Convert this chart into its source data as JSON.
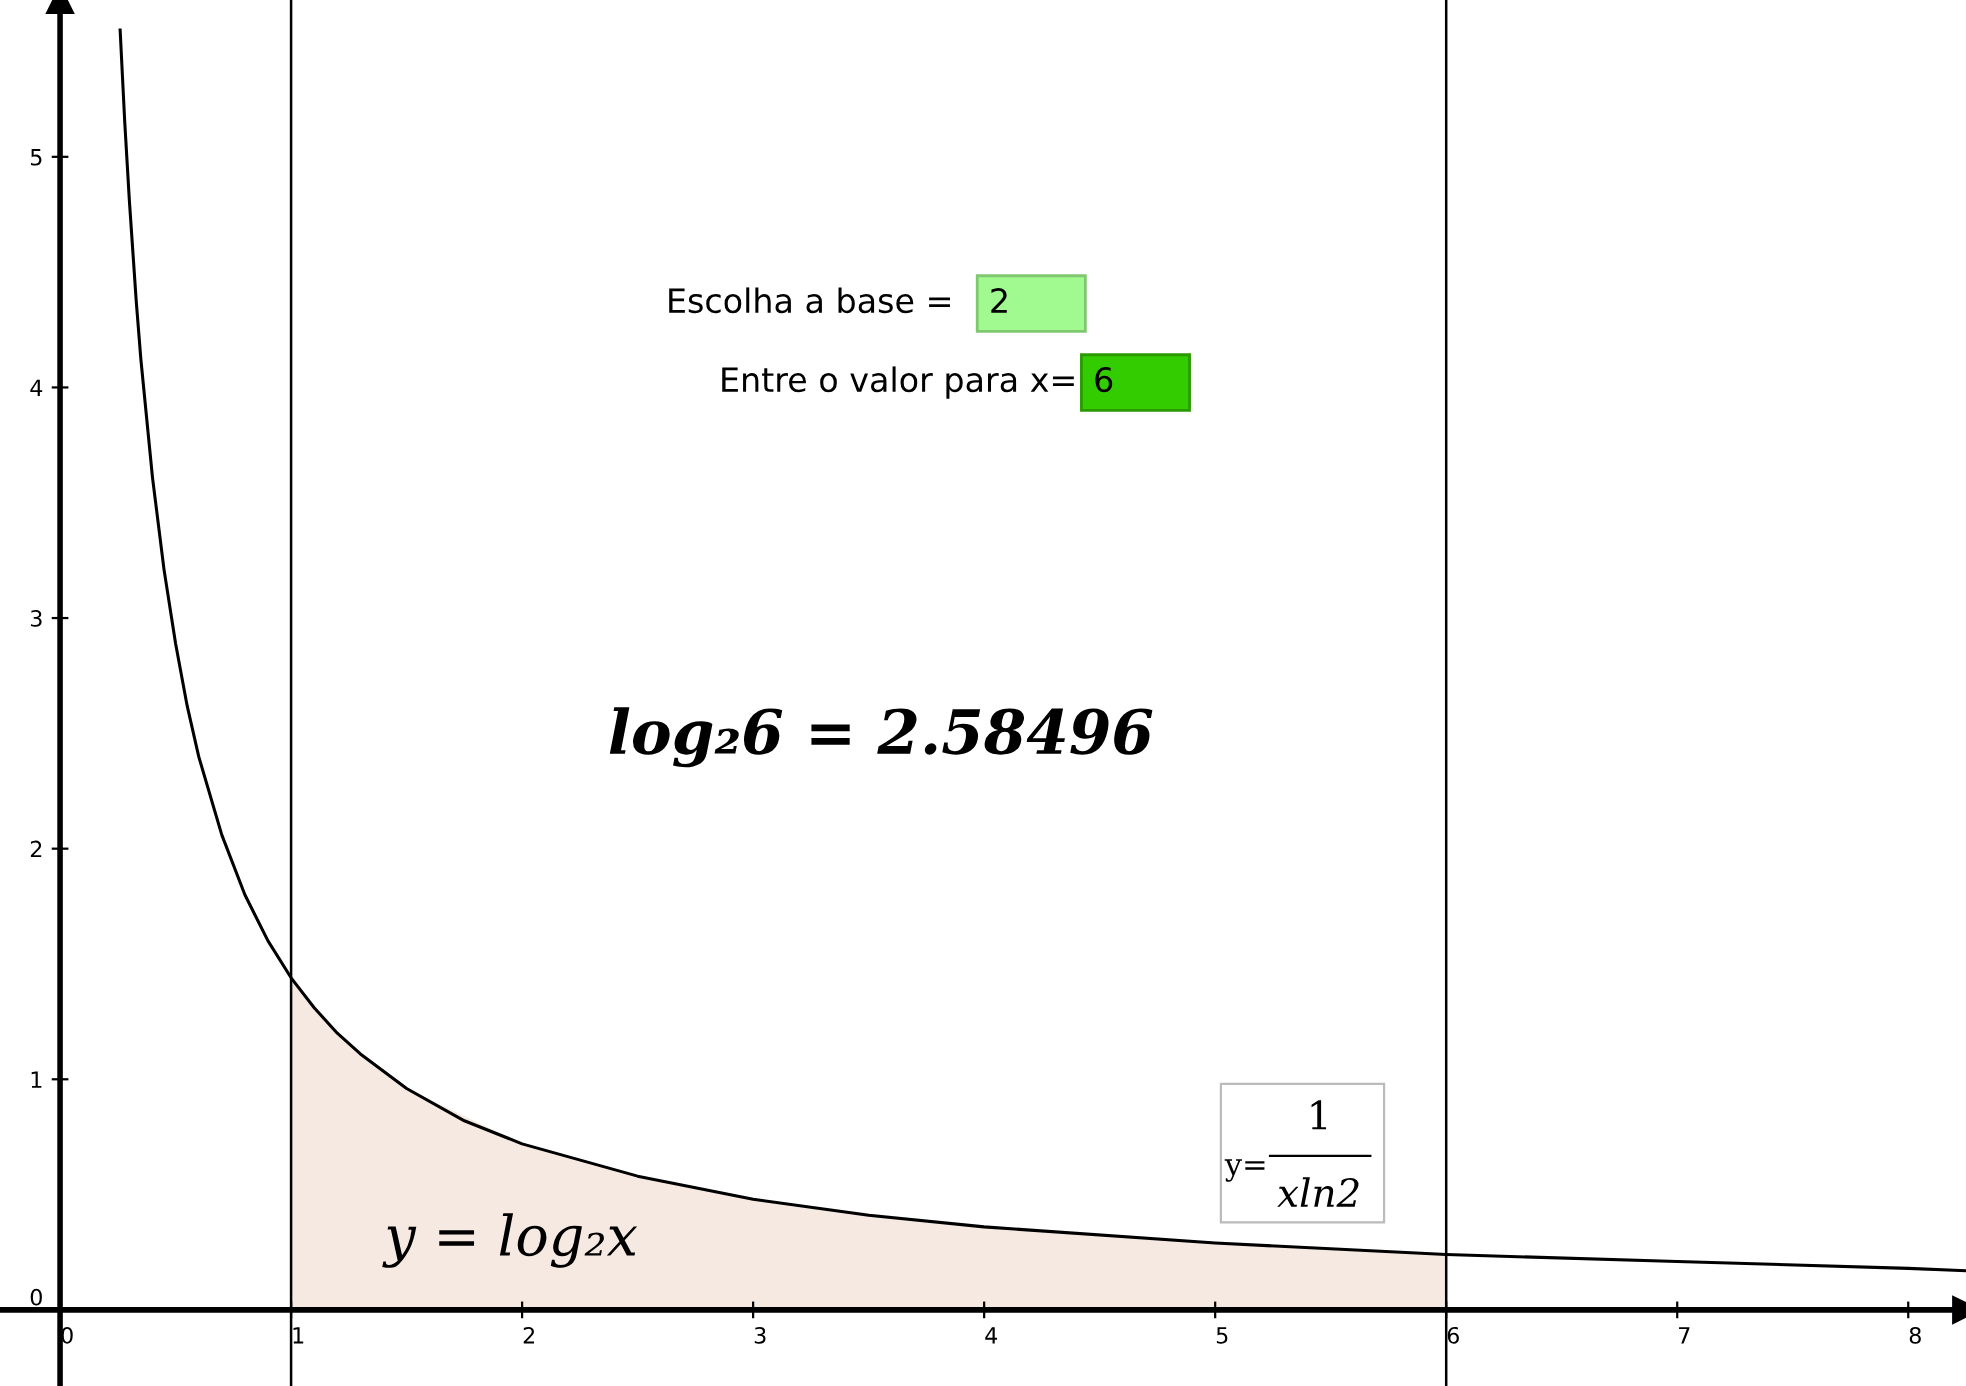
{
  "chart_data": {
    "type": "line",
    "series": [
      {
        "type": "area",
        "color": "#f5e9e2",
        "x": [
          1,
          1.2,
          1.5,
          2,
          2.5,
          3,
          4,
          5,
          6
        ],
        "values": [
          1.44,
          1.2,
          0.96,
          0.72,
          0.58,
          0.48,
          0.36,
          0.29,
          0.24
        ]
      },
      {
        "color": "#000000",
        "x": [
          0.26,
          0.28,
          0.3,
          0.33,
          0.35,
          0.4,
          0.45,
          0.5,
          0.55,
          0.6,
          0.7,
          0.8,
          0.9,
          1,
          1.1,
          1.2,
          1.3,
          1.5,
          1.75,
          2,
          2.5,
          3,
          3.5,
          4,
          5,
          6,
          7,
          8,
          8.25
        ],
        "values": [
          5.55,
          5.15,
          4.81,
          4.37,
          4.12,
          3.61,
          3.21,
          2.89,
          2.62,
          2.4,
          2.06,
          1.8,
          1.6,
          1.44,
          1.31,
          1.2,
          1.11,
          0.96,
          0.82,
          0.72,
          0.58,
          0.48,
          0.41,
          0.36,
          0.29,
          0.24,
          0.21,
          0.18,
          0.17
        ]
      }
    ],
    "xlim": [
      -0.26,
      8.25
    ],
    "ylim": [
      -0.33,
      5.68
    ],
    "xticks": [
      0,
      1,
      2,
      3,
      4,
      5,
      6,
      7,
      8
    ],
    "yticks": [
      0,
      1,
      2,
      3,
      4,
      5
    ],
    "ref_lines": [
      {
        "axis": "x",
        "value": 1,
        "color": "#000000"
      },
      {
        "axis": "x",
        "value": 6,
        "color": "#000000"
      }
    ],
    "annotations": [
      "Escolha a base =",
      "2",
      "Entre o valor para x=",
      "6",
      "log₂6 = 2.58496",
      "y = log₂x",
      "y=",
      "1",
      "xln2"
    ],
    "grid": false,
    "legend": false
  }
}
